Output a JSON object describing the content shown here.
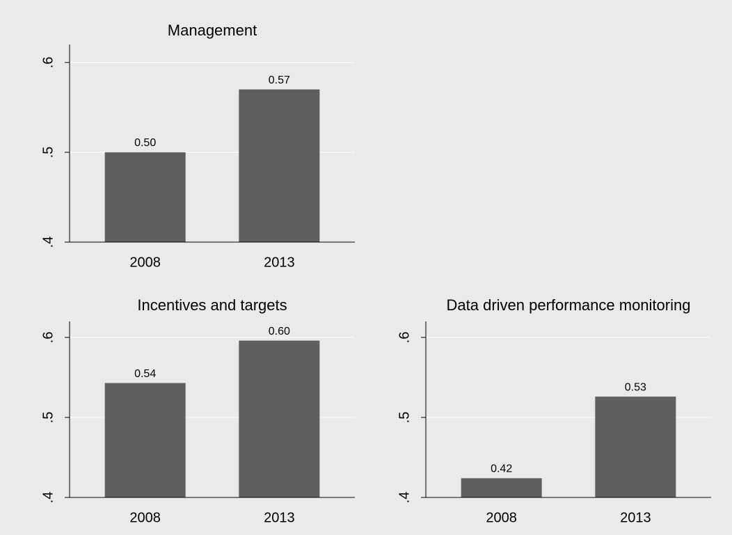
{
  "chart_data": [
    {
      "type": "bar",
      "title": "Management",
      "categories": [
        "2008",
        "2013"
      ],
      "values": [
        0.5,
        0.57
      ],
      "value_labels": [
        "0.50",
        "0.57"
      ],
      "color": "#5f5f5f",
      "ylim": [
        0.4,
        0.62
      ],
      "yticks": [
        {
          "value": 0.4,
          "label": ".4"
        },
        {
          "value": 0.5,
          "label": ".5"
        },
        {
          "value": 0.6,
          "label": ".6"
        }
      ],
      "grid": true
    },
    {
      "type": "bar",
      "title": "Incentives and targets",
      "categories": [
        "2008",
        "2013"
      ],
      "values": [
        0.543,
        0.596
      ],
      "value_labels": [
        "0.54",
        "0.60"
      ],
      "color": "#5f5f5f",
      "ylim": [
        0.4,
        0.62
      ],
      "yticks": [
        {
          "value": 0.4,
          "label": ".4"
        },
        {
          "value": 0.5,
          "label": ".5"
        },
        {
          "value": 0.6,
          "label": ".6"
        }
      ],
      "grid": true
    },
    {
      "type": "bar",
      "title": "Data driven performance monitoring",
      "categories": [
        "2008",
        "2013"
      ],
      "values": [
        0.424,
        0.526
      ],
      "value_labels": [
        "0.42",
        "0.53"
      ],
      "color": "#5f5f5f",
      "ylim": [
        0.4,
        0.62
      ],
      "yticks": [
        {
          "value": 0.4,
          "label": ".4"
        },
        {
          "value": 0.5,
          "label": ".5"
        },
        {
          "value": 0.6,
          "label": ".6"
        }
      ],
      "grid": true
    }
  ]
}
